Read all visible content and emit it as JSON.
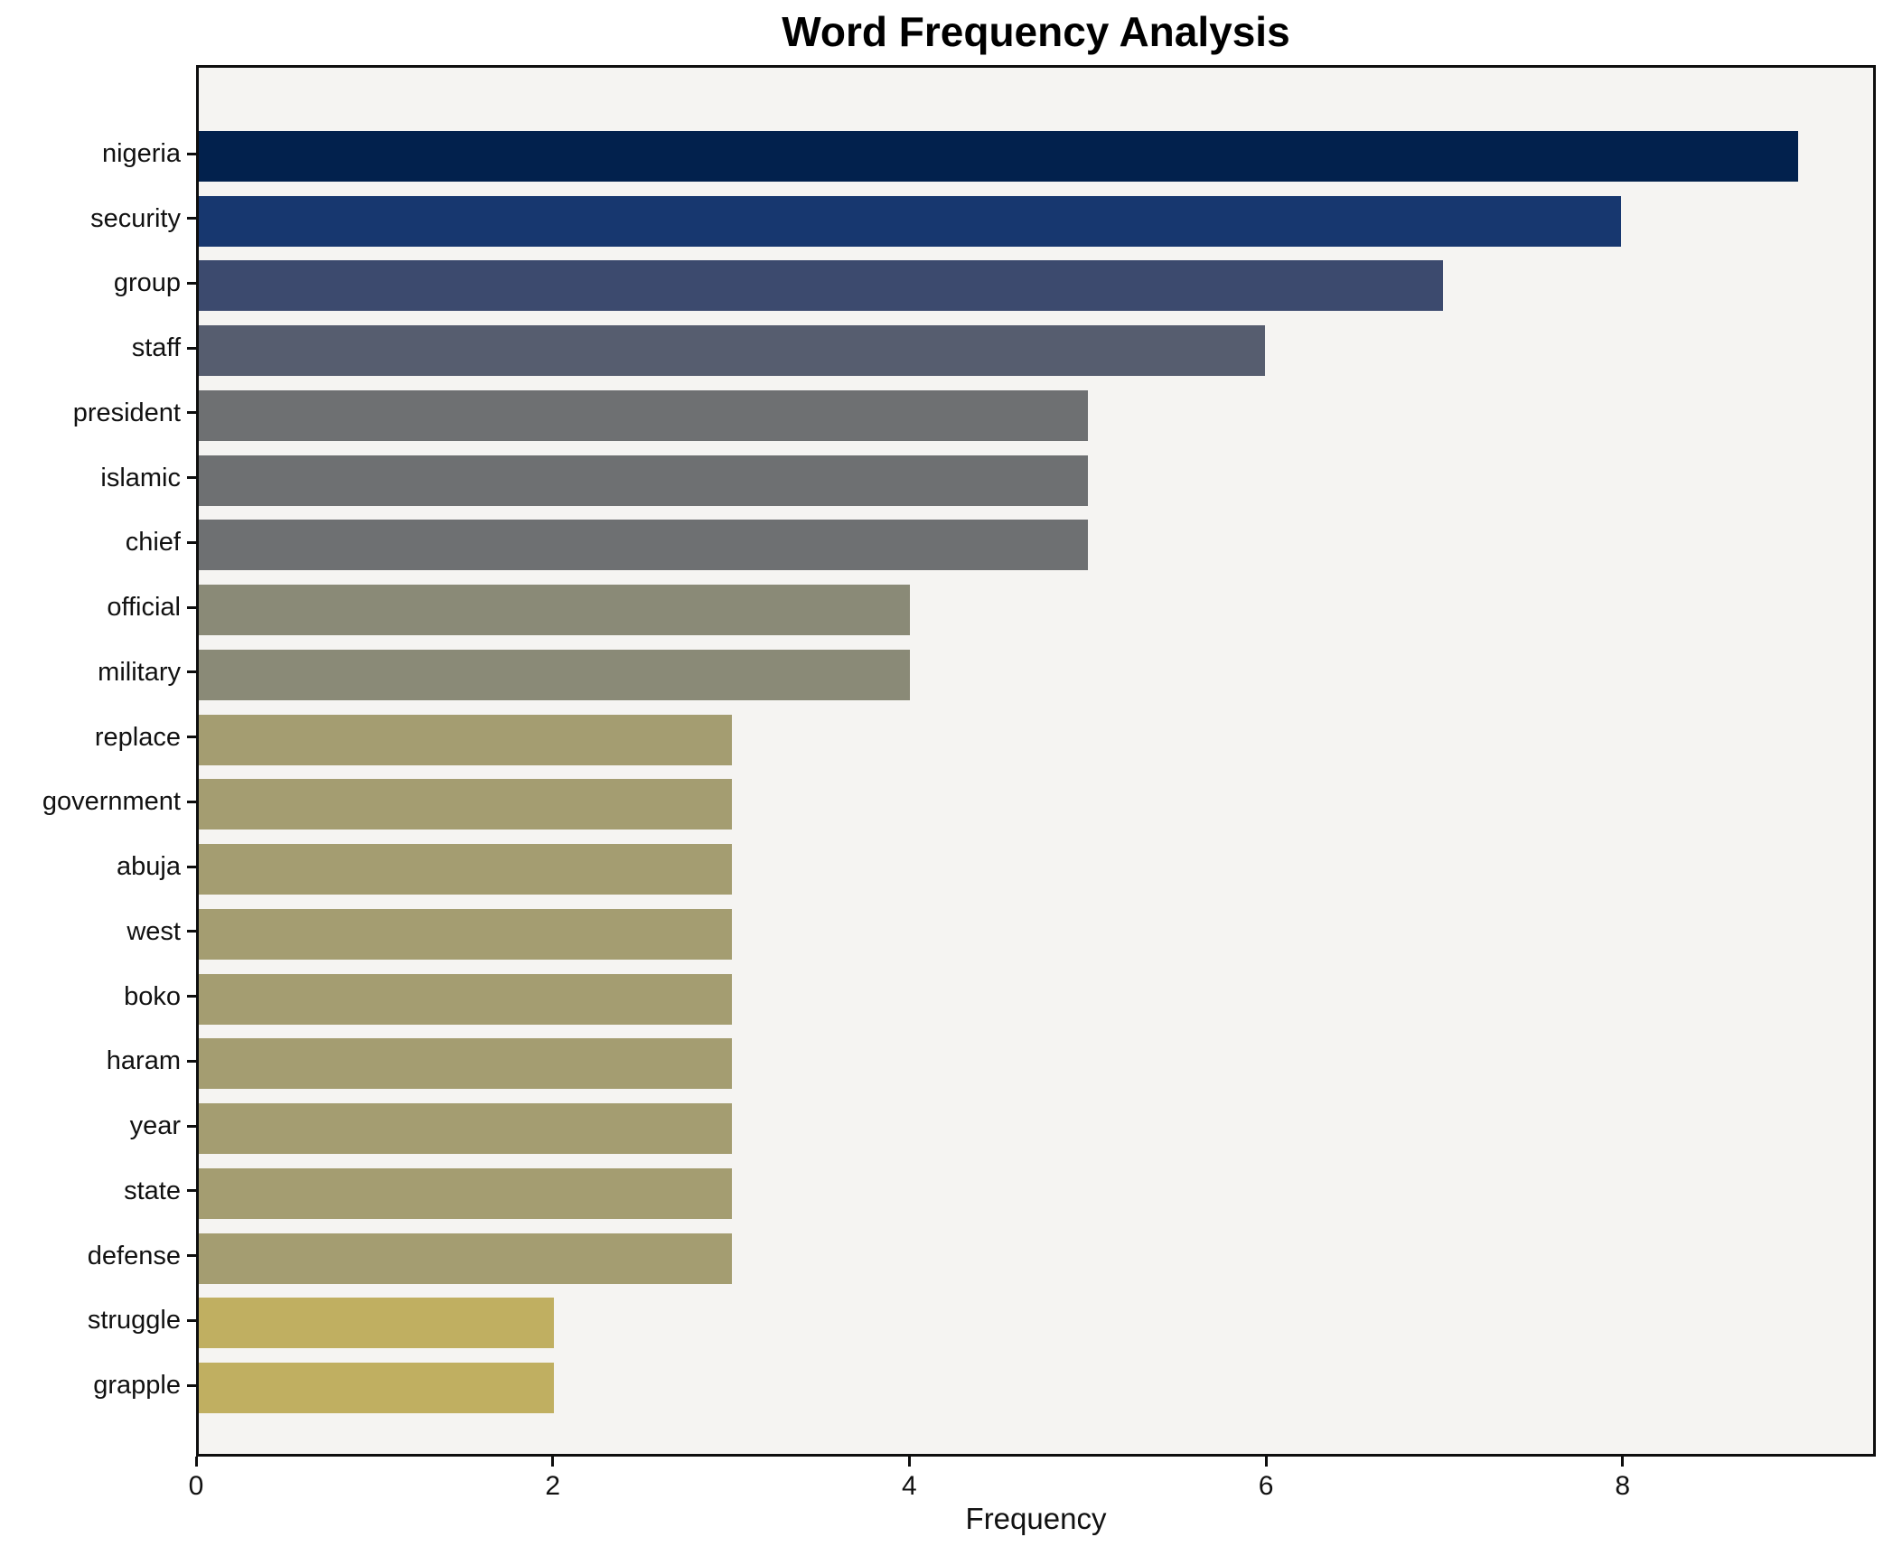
{
  "chart_data": {
    "type": "bar",
    "orientation": "horizontal",
    "title": "Word Frequency Analysis",
    "xlabel": "Frequency",
    "ylabel": "",
    "xlim": [
      0,
      9.42
    ],
    "xticks": [
      "0",
      "2",
      "4",
      "6",
      "8"
    ],
    "xtick_values": [
      0,
      2,
      4,
      6,
      8
    ],
    "grid": false,
    "legend": "none",
    "plot_background": "#f5f4f2",
    "bars": [
      {
        "label": "nigeria",
        "value": 9,
        "color": "#02214d"
      },
      {
        "label": "security",
        "value": 8,
        "color": "#17376f"
      },
      {
        "label": "group",
        "value": 7,
        "color": "#3c4a6e"
      },
      {
        "label": "staff",
        "value": 6,
        "color": "#565d6f"
      },
      {
        "label": "president",
        "value": 5,
        "color": "#6e7072"
      },
      {
        "label": "islamic",
        "value": 5,
        "color": "#6e7072"
      },
      {
        "label": "chief",
        "value": 5,
        "color": "#6e7072"
      },
      {
        "label": "official",
        "value": 4,
        "color": "#8a8a77"
      },
      {
        "label": "military",
        "value": 4,
        "color": "#8a8a77"
      },
      {
        "label": "replace",
        "value": 3,
        "color": "#a49d71"
      },
      {
        "label": "government",
        "value": 3,
        "color": "#a49d71"
      },
      {
        "label": "abuja",
        "value": 3,
        "color": "#a49d71"
      },
      {
        "label": "west",
        "value": 3,
        "color": "#a49d71"
      },
      {
        "label": "boko",
        "value": 3,
        "color": "#a49d71"
      },
      {
        "label": "haram",
        "value": 3,
        "color": "#a49d71"
      },
      {
        "label": "year",
        "value": 3,
        "color": "#a49d71"
      },
      {
        "label": "state",
        "value": 3,
        "color": "#a49d71"
      },
      {
        "label": "defense",
        "value": 3,
        "color": "#a49d71"
      },
      {
        "label": "struggle",
        "value": 2,
        "color": "#c0af61"
      },
      {
        "label": "grapple",
        "value": 2,
        "color": "#c0af61"
      }
    ]
  }
}
